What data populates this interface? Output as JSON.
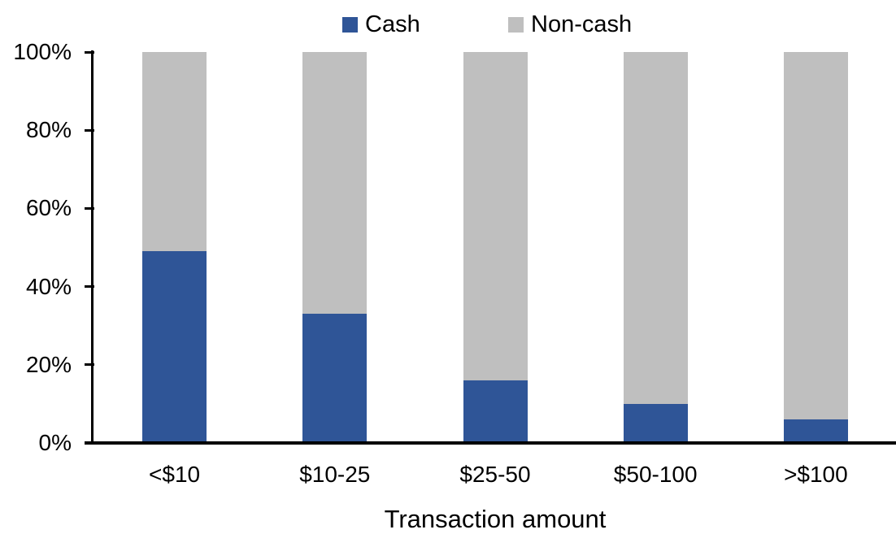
{
  "chart_data": {
    "type": "bar",
    "variant": "stacked-100",
    "title": "",
    "xlabel": "Transaction amount",
    "ylabel": "",
    "categories": [
      "<$10",
      "$10-25",
      "$25-50",
      "$50-100",
      ">$100"
    ],
    "series": [
      {
        "name": "Cash",
        "color": "#2F5597",
        "values": [
          49,
          33,
          16,
          10,
          6
        ]
      },
      {
        "name": "Non-cash",
        "color": "#BFBFBF",
        "values": [
          51,
          67,
          84,
          90,
          94
        ]
      }
    ],
    "ylim": [
      0,
      100
    ],
    "yticks": [
      0,
      20,
      40,
      60,
      80,
      100
    ],
    "ytick_labels": [
      "0%",
      "20%",
      "40%",
      "60%",
      "80%",
      "100%"
    ],
    "legend": {
      "position": "top",
      "items": [
        "Cash",
        "Non-cash"
      ]
    },
    "grid": false,
    "axis_color": "#000000",
    "background": "#FFFFFF"
  }
}
